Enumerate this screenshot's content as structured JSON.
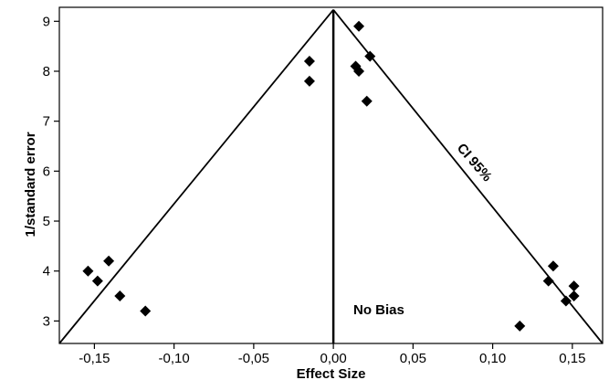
{
  "chart_data": {
    "type": "scatter",
    "title": "",
    "xlabel": "Effect Size",
    "ylabel": "1/standard error",
    "xlim": [
      -0.172,
      0.169
    ],
    "ylim": [
      2.55,
      9.28
    ],
    "grid": false,
    "x_ticks": [
      {
        "value": -0.15,
        "label": "-0,15"
      },
      {
        "value": -0.1,
        "label": "-0,10"
      },
      {
        "value": -0.05,
        "label": "-0,05"
      },
      {
        "value": 0.0,
        "label": "0,00"
      },
      {
        "value": 0.05,
        "label": "0,05"
      },
      {
        "value": 0.1,
        "label": "0,10"
      },
      {
        "value": 0.15,
        "label": "0,15"
      }
    ],
    "y_ticks": [
      {
        "value": 3,
        "label": "3"
      },
      {
        "value": 4,
        "label": "4"
      },
      {
        "value": 5,
        "label": "5"
      },
      {
        "value": 6,
        "label": "6"
      },
      {
        "value": 7,
        "label": "7"
      },
      {
        "value": 8,
        "label": "8"
      },
      {
        "value": 9,
        "label": "9"
      }
    ],
    "points": [
      {
        "x": -0.154,
        "y": 4.0
      },
      {
        "x": -0.148,
        "y": 3.8
      },
      {
        "x": -0.141,
        "y": 4.2
      },
      {
        "x": -0.134,
        "y": 3.5
      },
      {
        "x": -0.118,
        "y": 3.2
      },
      {
        "x": -0.015,
        "y": 8.2
      },
      {
        "x": -0.015,
        "y": 7.8
      },
      {
        "x": 0.016,
        "y": 8.9
      },
      {
        "x": 0.014,
        "y": 8.1
      },
      {
        "x": 0.016,
        "y": 8.0
      },
      {
        "x": 0.023,
        "y": 8.3
      },
      {
        "x": 0.021,
        "y": 7.4
      },
      {
        "x": 0.117,
        "y": 2.9
      },
      {
        "x": 0.135,
        "y": 3.8
      },
      {
        "x": 0.138,
        "y": 4.1
      },
      {
        "x": 0.146,
        "y": 3.4
      },
      {
        "x": 0.151,
        "y": 3.5
      },
      {
        "x": 0.151,
        "y": 3.7
      }
    ],
    "no_bias_line": {
      "x": 0.0,
      "label": "No Bias"
    },
    "ci_funnel": {
      "label": "CI 95%",
      "apex": {
        "x": 0.0,
        "y": 9.23
      },
      "left_at_ymin": {
        "x": -0.172,
        "y": 2.55
      },
      "right_at_ymin": {
        "x": 0.169,
        "y": 2.55
      }
    },
    "marker": "diamond",
    "marker_color": "#000000"
  }
}
